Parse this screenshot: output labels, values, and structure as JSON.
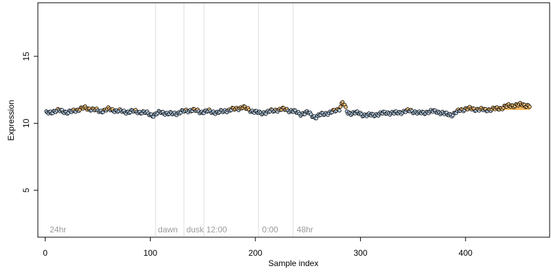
{
  "chart_data": {
    "type": "scatter",
    "title": "",
    "xlabel": "Sample index",
    "ylabel": "Expression",
    "xlim": [
      -7,
      480
    ],
    "ylim": [
      1.5,
      19
    ],
    "x_ticks": [
      0,
      100,
      200,
      300,
      400
    ],
    "y_ticks": [
      5,
      10,
      15
    ],
    "grid": false,
    "baseline": 11.0,
    "colors": {
      "below": "#b9d1ea",
      "above": "#f3c17a",
      "bar": "#f0a030",
      "outline": "#000000",
      "divider": "#dcdcdc",
      "annotation": "#9a9a9a"
    },
    "annotations": [
      {
        "x": 3,
        "label": "24hr"
      },
      {
        "x": 106,
        "label": "dawn"
      },
      {
        "x": 133,
        "label": "dusk"
      },
      {
        "x": 152,
        "label": "12:00"
      },
      {
        "x": 205,
        "label": "0:00"
      },
      {
        "x": 238,
        "label": "48hr"
      }
    ],
    "dividers": [
      105,
      132,
      151,
      203,
      236
    ],
    "series_keyframes": [
      [
        1,
        10.75
      ],
      [
        8,
        10.9
      ],
      [
        15,
        10.95
      ],
      [
        22,
        10.8
      ],
      [
        30,
        11.0
      ],
      [
        37,
        11.15
      ],
      [
        45,
        11.05
      ],
      [
        52,
        10.9
      ],
      [
        60,
        11.05
      ],
      [
        68,
        10.95
      ],
      [
        76,
        10.85
      ],
      [
        85,
        10.9
      ],
      [
        95,
        10.8
      ],
      [
        103,
        10.6
      ],
      [
        110,
        10.85
      ],
      [
        118,
        10.7
      ],
      [
        125,
        10.75
      ],
      [
        132,
        10.9
      ],
      [
        140,
        11.0
      ],
      [
        148,
        10.85
      ],
      [
        156,
        10.9
      ],
      [
        164,
        10.8
      ],
      [
        172,
        10.95
      ],
      [
        180,
        11.05
      ],
      [
        188,
        11.2
      ],
      [
        196,
        10.95
      ],
      [
        204,
        10.75
      ],
      [
        212,
        10.85
      ],
      [
        220,
        11.0
      ],
      [
        228,
        11.05
      ],
      [
        236,
        10.9
      ],
      [
        243,
        10.7
      ],
      [
        250,
        10.8
      ],
      [
        257,
        10.45
      ],
      [
        264,
        10.7
      ],
      [
        272,
        10.8
      ],
      [
        280,
        11.1
      ],
      [
        283,
        11.6
      ],
      [
        288,
        10.75
      ],
      [
        295,
        10.8
      ],
      [
        302,
        10.65
      ],
      [
        310,
        10.6
      ],
      [
        318,
        10.7
      ],
      [
        325,
        10.8
      ],
      [
        332,
        10.75
      ],
      [
        340,
        10.85
      ],
      [
        348,
        10.95
      ],
      [
        356,
        10.75
      ],
      [
        364,
        10.85
      ],
      [
        372,
        10.9
      ],
      [
        380,
        10.7
      ],
      [
        388,
        10.65
      ],
      [
        395,
        11.0
      ],
      [
        402,
        11.1
      ],
      [
        410,
        11.05
      ],
      [
        418,
        11.0
      ],
      [
        426,
        11.05
      ],
      [
        434,
        11.15
      ],
      [
        440,
        11.3
      ],
      [
        447,
        11.35
      ],
      [
        454,
        11.4
      ],
      [
        461,
        11.3
      ]
    ],
    "n_points": 461
  }
}
